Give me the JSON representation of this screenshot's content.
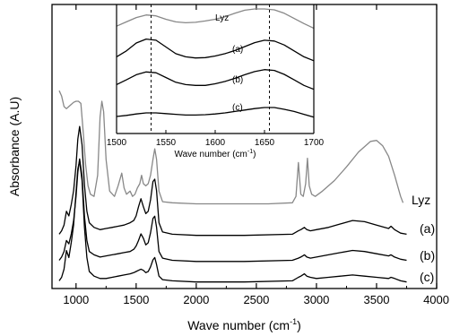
{
  "chart_data": [
    {
      "type": "line",
      "xlabel": "Wave number (cm",
      "xlabel_sup": "-1",
      "xlabel_end": ")",
      "ylabel": "Absorbance (A.U)",
      "xlim": [
        800,
        4000
      ],
      "xticks": [
        1000,
        1500,
        2000,
        2500,
        3000,
        3500,
        4000
      ],
      "yticks_labeled": false,
      "series": [
        {
          "name": "Lyz",
          "color": "#888888",
          "x": [
            860,
            880,
            900,
            920,
            940,
            960,
            980,
            1000,
            1020,
            1040,
            1060,
            1080,
            1100,
            1120,
            1150,
            1180,
            1200,
            1215,
            1230,
            1250,
            1280,
            1320,
            1350,
            1380,
            1400,
            1420,
            1450,
            1470,
            1490,
            1510,
            1530,
            1545,
            1560,
            1580,
            1600,
            1620,
            1640,
            1655,
            1670,
            1690,
            1720,
            1800,
            2000,
            2200,
            2400,
            2600,
            2800,
            2830,
            2850,
            2870,
            2890,
            2910,
            2925,
            2940,
            2960,
            2990,
            3050,
            3150,
            3250,
            3350,
            3450,
            3500,
            3550,
            3600,
            3650,
            3700,
            3720
          ],
          "y": [
            1.1,
            1.05,
            0.95,
            0.93,
            0.95,
            0.97,
            0.99,
            1.0,
            1.0,
            0.98,
            0.7,
            0.4,
            0.2,
            0.12,
            0.1,
            0.3,
            0.85,
            1.0,
            0.9,
            0.45,
            0.15,
            0.1,
            0.2,
            0.32,
            0.18,
            0.12,
            0.15,
            0.1,
            0.12,
            0.18,
            0.22,
            0.3,
            0.22,
            0.2,
            0.22,
            0.3,
            0.45,
            0.55,
            0.45,
            0.15,
            0.05,
            0.04,
            0.03,
            0.03,
            0.03,
            0.03,
            0.04,
            0.1,
            0.42,
            0.12,
            0.1,
            0.22,
            0.46,
            0.2,
            0.12,
            0.1,
            0.15,
            0.25,
            0.38,
            0.52,
            0.62,
            0.63,
            0.58,
            0.48,
            0.3,
            0.1,
            0.04
          ]
        },
        {
          "name": "(a)",
          "color": "#000000",
          "x": [
            860,
            880,
            900,
            920,
            940,
            960,
            980,
            1000,
            1015,
            1030,
            1050,
            1070,
            1090,
            1110,
            1150,
            1200,
            1250,
            1300,
            1350,
            1400,
            1450,
            1480,
            1500,
            1520,
            1540,
            1560,
            1580,
            1600,
            1620,
            1640,
            1655,
            1670,
            1690,
            1720,
            1800,
            2000,
            2400,
            2800,
            2850,
            2870,
            2900,
            2920,
            2950,
            3000,
            3100,
            3200,
            3300,
            3400,
            3500,
            3600,
            3620,
            3650,
            3700,
            3750
          ],
          "y": [
            0.02,
            0.05,
            0.1,
            0.22,
            0.18,
            0.28,
            0.4,
            0.62,
            0.85,
            0.96,
            0.8,
            0.45,
            0.22,
            0.12,
            0.08,
            0.06,
            0.07,
            0.08,
            0.09,
            0.1,
            0.12,
            0.14,
            0.18,
            0.26,
            0.33,
            0.26,
            0.2,
            0.22,
            0.32,
            0.48,
            0.5,
            0.4,
            0.12,
            0.04,
            0.02,
            0.01,
            0.01,
            0.02,
            0.05,
            0.06,
            0.08,
            0.06,
            0.05,
            0.06,
            0.08,
            0.11,
            0.14,
            0.13,
            0.1,
            0.07,
            0.09,
            0.06,
            0.03,
            0.02
          ]
        },
        {
          "name": "(b)",
          "color": "#000000",
          "x": [
            860,
            880,
            900,
            920,
            940,
            960,
            980,
            1000,
            1015,
            1030,
            1050,
            1070,
            1090,
            1110,
            1150,
            1200,
            1250,
            1300,
            1350,
            1400,
            1450,
            1480,
            1500,
            1520,
            1540,
            1560,
            1580,
            1600,
            1620,
            1640,
            1655,
            1670,
            1690,
            1720,
            1800,
            2000,
            2400,
            2800,
            2850,
            2870,
            2900,
            2920,
            2950,
            3000,
            3100,
            3200,
            3300,
            3400,
            3500,
            3600,
            3620,
            3650,
            3700,
            3750
          ],
          "y": [
            0.02,
            0.05,
            0.1,
            0.2,
            0.17,
            0.26,
            0.38,
            0.6,
            0.82,
            0.94,
            0.78,
            0.42,
            0.2,
            0.1,
            0.07,
            0.05,
            0.06,
            0.07,
            0.08,
            0.09,
            0.1,
            0.12,
            0.15,
            0.2,
            0.26,
            0.22,
            0.16,
            0.18,
            0.27,
            0.4,
            0.42,
            0.32,
            0.1,
            0.04,
            0.02,
            0.01,
            0.01,
            0.02,
            0.04,
            0.05,
            0.07,
            0.05,
            0.04,
            0.05,
            0.07,
            0.09,
            0.11,
            0.1,
            0.08,
            0.06,
            0.07,
            0.05,
            0.03,
            0.02
          ]
        },
        {
          "name": "(c)",
          "color": "#000000",
          "x": [
            860,
            880,
            900,
            920,
            940,
            960,
            980,
            1000,
            1015,
            1030,
            1050,
            1070,
            1090,
            1110,
            1150,
            1200,
            1250,
            1300,
            1350,
            1400,
            1450,
            1480,
            1500,
            1520,
            1540,
            1560,
            1580,
            1600,
            1620,
            1640,
            1655,
            1670,
            1690,
            1720,
            1800,
            2000,
            2400,
            2800,
            2850,
            2870,
            2900,
            2920,
            2950,
            3000,
            3100,
            3200,
            3300,
            3400,
            3500,
            3600,
            3620,
            3650,
            3700,
            3750
          ],
          "y": [
            0.02,
            0.05,
            0.12,
            0.28,
            0.22,
            0.35,
            0.5,
            0.78,
            0.98,
            1.05,
            0.88,
            0.48,
            0.22,
            0.1,
            0.06,
            0.04,
            0.04,
            0.05,
            0.06,
            0.07,
            0.08,
            0.09,
            0.1,
            0.11,
            0.12,
            0.11,
            0.09,
            0.1,
            0.14,
            0.2,
            0.22,
            0.16,
            0.06,
            0.03,
            0.02,
            0.01,
            0.01,
            0.02,
            0.05,
            0.06,
            0.08,
            0.06,
            0.05,
            0.04,
            0.05,
            0.06,
            0.07,
            0.06,
            0.05,
            0.04,
            0.05,
            0.04,
            0.02,
            0.01
          ]
        }
      ]
    },
    {
      "type": "line",
      "xlabel": "Wave number (cm",
      "xlabel_sup": "-1",
      "xlabel_end": ")",
      "xlim": [
        1500,
        1700
      ],
      "xticks": [
        1500,
        1550,
        1600,
        1650,
        1700
      ],
      "reference_lines_x": [
        1535,
        1655
      ],
      "series": [
        {
          "name": "Lyz",
          "color": "#888888",
          "x": [
            1500,
            1510,
            1520,
            1530,
            1540,
            1550,
            1560,
            1570,
            1580,
            1590,
            1600,
            1610,
            1620,
            1630,
            1640,
            1650,
            1660,
            1670,
            1680,
            1690,
            1700
          ],
          "y": [
            0.6,
            0.7,
            0.8,
            0.86,
            0.84,
            0.76,
            0.7,
            0.68,
            0.69,
            0.72,
            0.76,
            0.82,
            0.9,
            0.97,
            1.0,
            1.0,
            0.98,
            0.9,
            0.78,
            0.66,
            0.55
          ]
        },
        {
          "name": "(a)",
          "color": "#000000",
          "x": [
            1500,
            1510,
            1520,
            1530,
            1540,
            1550,
            1560,
            1570,
            1580,
            1590,
            1600,
            1610,
            1620,
            1630,
            1640,
            1650,
            1660,
            1670,
            1680,
            1690,
            1700
          ],
          "y": [
            0.4,
            0.55,
            0.75,
            0.85,
            0.82,
            0.65,
            0.48,
            0.4,
            0.37,
            0.38,
            0.42,
            0.48,
            0.56,
            0.66,
            0.76,
            0.82,
            0.8,
            0.7,
            0.55,
            0.4,
            0.3
          ]
        },
        {
          "name": "(b)",
          "color": "#000000",
          "x": [
            1500,
            1510,
            1520,
            1530,
            1540,
            1550,
            1560,
            1570,
            1580,
            1590,
            1600,
            1610,
            1620,
            1630,
            1640,
            1650,
            1660,
            1670,
            1680,
            1690,
            1700
          ],
          "y": [
            0.4,
            0.52,
            0.65,
            0.72,
            0.7,
            0.58,
            0.46,
            0.4,
            0.38,
            0.38,
            0.42,
            0.48,
            0.56,
            0.65,
            0.73,
            0.78,
            0.76,
            0.66,
            0.52,
            0.38,
            0.28
          ]
        },
        {
          "name": "(c)",
          "color": "#000000",
          "x": [
            1500,
            1510,
            1520,
            1530,
            1540,
            1550,
            1560,
            1570,
            1580,
            1590,
            1600,
            1610,
            1620,
            1630,
            1640,
            1650,
            1660,
            1670,
            1680,
            1690,
            1700
          ],
          "y": [
            0.3,
            0.33,
            0.37,
            0.4,
            0.4,
            0.38,
            0.36,
            0.34,
            0.34,
            0.35,
            0.37,
            0.4,
            0.44,
            0.48,
            0.52,
            0.55,
            0.55,
            0.5,
            0.44,
            0.36,
            0.28
          ]
        }
      ]
    }
  ]
}
